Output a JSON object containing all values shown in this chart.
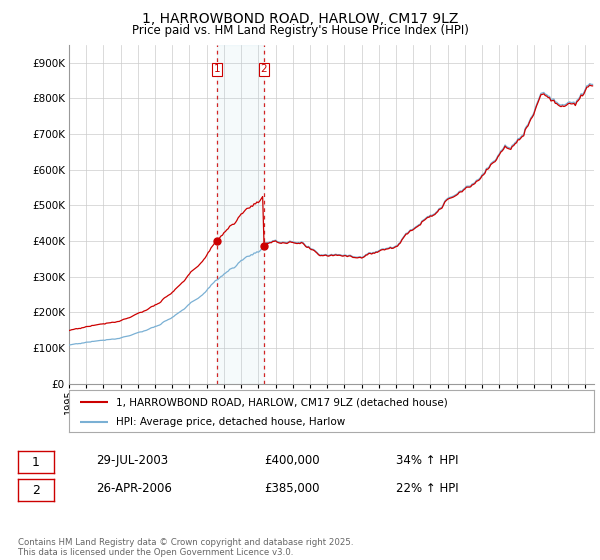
{
  "title": "1, HARROWBOND ROAD, HARLOW, CM17 9LZ",
  "subtitle": "Price paid vs. HM Land Registry's House Price Index (HPI)",
  "red_label": "1, HARROWBOND ROAD, HARLOW, CM17 9LZ (detached house)",
  "blue_label": "HPI: Average price, detached house, Harlow",
  "red_color": "#cc0000",
  "blue_color": "#7ab0d4",
  "transaction1_date": "29-JUL-2003",
  "transaction1_price": "£400,000",
  "transaction1_hpi": "34% ↑ HPI",
  "transaction2_date": "26-APR-2006",
  "transaction2_price": "£385,000",
  "transaction2_hpi": "22% ↑ HPI",
  "vline1_x": 2003.58,
  "vline2_x": 2006.32,
  "marker1_y": 400000,
  "marker2_y": 385000,
  "ylim": [
    0,
    950000
  ],
  "xlim": [
    1995,
    2025.5
  ],
  "yticks": [
    0,
    100000,
    200000,
    300000,
    400000,
    500000,
    600000,
    700000,
    800000,
    900000
  ],
  "footnote": "Contains HM Land Registry data © Crown copyright and database right 2025.\nThis data is licensed under the Open Government Licence v3.0.",
  "background_color": "#ffffff",
  "grid_color": "#cccccc"
}
